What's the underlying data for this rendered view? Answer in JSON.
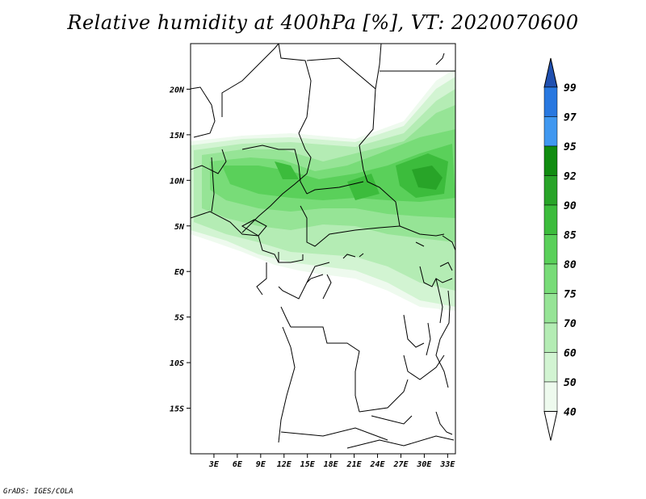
{
  "title": "Relative humidity at 400hPa [%], VT: 2020070600",
  "credit": "GrADS: IGES/COLA",
  "map": {
    "lon_range": [
      0,
      34
    ],
    "lat_range": [
      -20,
      25
    ],
    "lat_labels": [
      "20N",
      "15N",
      "10N",
      "5N",
      "EQ",
      "5S",
      "10S",
      "15S"
    ],
    "lat_values": [
      20,
      15,
      10,
      5,
      0,
      -5,
      -10,
      -15
    ],
    "lon_labels": [
      "3E",
      "6E",
      "9E",
      "12E",
      "15E",
      "18E",
      "21E",
      "24E",
      "27E",
      "30E",
      "33E"
    ],
    "lon_values": [
      3,
      6,
      9,
      12,
      15,
      18,
      21,
      24,
      27,
      30,
      33
    ]
  },
  "colorbar": {
    "levels": [
      "99",
      "97",
      "95",
      "92",
      "90",
      "85",
      "80",
      "75",
      "70",
      "60",
      "50",
      "40"
    ],
    "colors": [
      "#2060c8",
      "#2878e0",
      "#4098f0",
      "#108c10",
      "#28a428",
      "#3cbc3c",
      "#5ad05a",
      "#78dc78",
      "#96e496",
      "#b4ecb4",
      "#d2f4d2",
      "#eefaee"
    ],
    "top_color": "#2050b0",
    "bottom_color": "#ffffff"
  },
  "chart_data": {
    "type": "heatmap",
    "title": "Relative humidity at 400hPa [%], VT: 2020070600",
    "variable": "Relative humidity",
    "units": "%",
    "level": "400hPa",
    "valid_time": "2020070600",
    "contour_levels": [
      40,
      50,
      60,
      70,
      75,
      80,
      85,
      90,
      92,
      95,
      97,
      99
    ]
  }
}
